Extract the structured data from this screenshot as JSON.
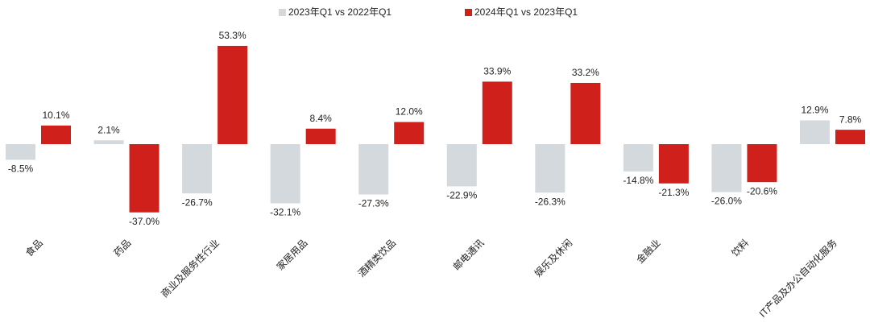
{
  "chart_data": {
    "type": "bar",
    "categories": [
      "食品",
      "药品",
      "商业及服务性行业",
      "家居用品",
      "酒精类饮品",
      "邮电通讯",
      "娱乐及休闲",
      "金融业",
      "饮料",
      "IT产品及办公自动化服务"
    ],
    "series": [
      {
        "name": "2023年Q1 vs 2022年Q1",
        "color": "#d3d9dc",
        "values": [
          -8.5,
          2.1,
          -26.7,
          -32.1,
          -27.3,
          -22.9,
          -26.3,
          -14.8,
          -26.0,
          12.9
        ],
        "value_labels": [
          "-8.5%",
          "2.1%",
          "-26.7%",
          "-32.1%",
          "-27.3%",
          "-22.9%",
          "-26.3%",
          "-14.8%",
          "-26.0%",
          "12.9%"
        ]
      },
      {
        "name": "2024年Q1 vs 2023年Q1",
        "color": "#d0201c",
        "values": [
          10.1,
          -37.0,
          53.3,
          8.4,
          12.0,
          33.9,
          33.2,
          -21.3,
          -20.6,
          7.8
        ],
        "value_labels": [
          "10.1%",
          "-37.0%",
          "53.3%",
          "8.4%",
          "12.0%",
          "33.9%",
          "33.2%",
          "-21.3%",
          "-20.6%",
          "7.8%"
        ]
      }
    ],
    "ylim": [
      -40,
      60
    ],
    "legend": "top"
  }
}
